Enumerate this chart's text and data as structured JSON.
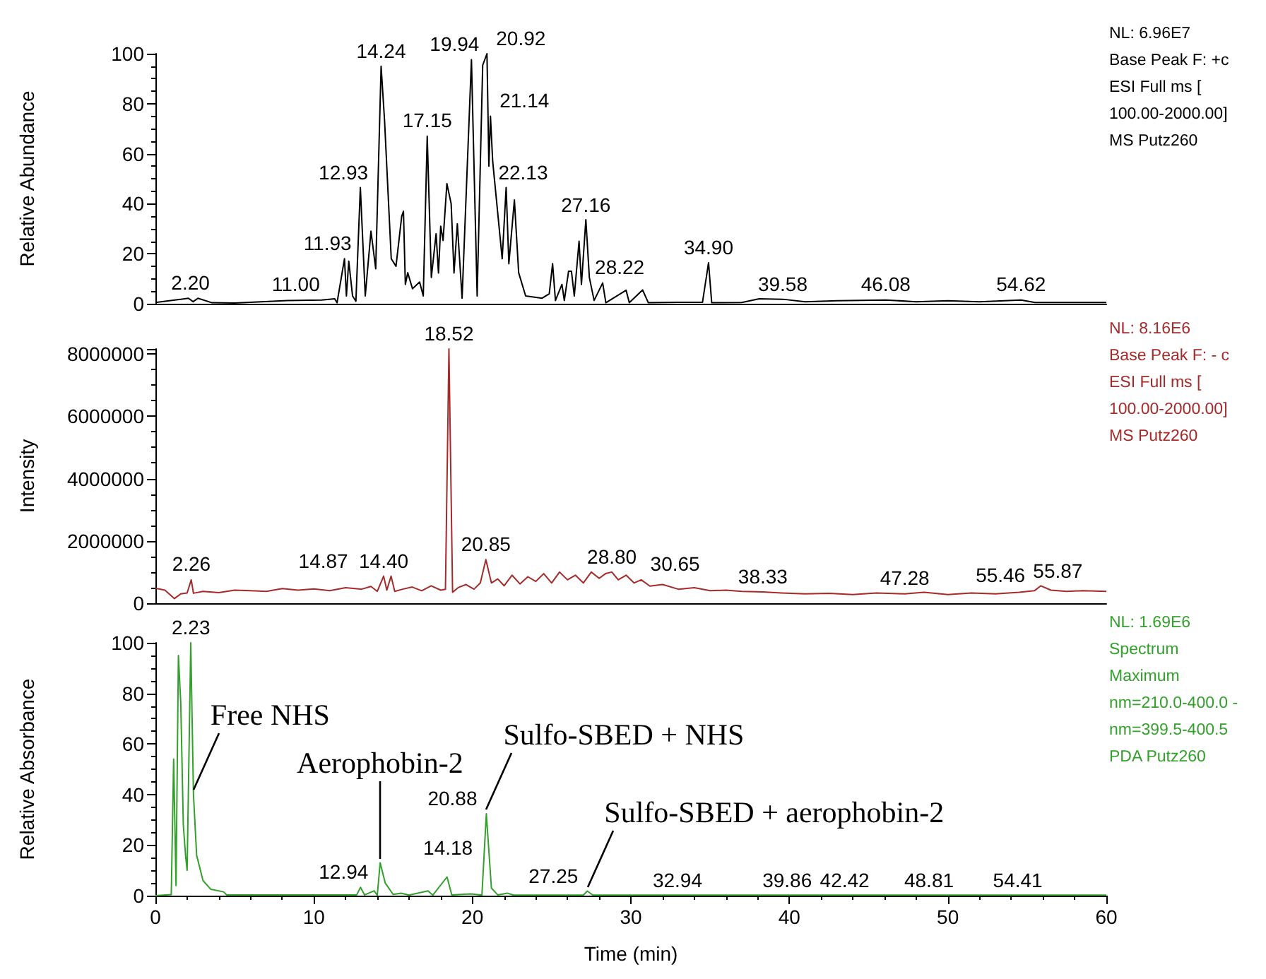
{
  "chart_data": [
    {
      "type": "line",
      "ylabel": "Relative Abundance",
      "xlim": [
        0,
        60
      ],
      "ylim": [
        0,
        100
      ],
      "yticks": [
        0,
        20,
        40,
        60,
        80,
        100
      ],
      "tick_labels": "y",
      "series": [
        {
          "color": "#000000",
          "x": [
            0,
            1.49,
            2.08,
            2.38,
            2.68,
            3.57,
            5,
            8.33,
            10.5,
            11.31,
            11.46,
            11.93,
            12.05,
            12.2,
            12.44,
            12.65,
            12.93,
            13.24,
            13.6,
            13.9,
            14.24,
            14.46,
            14.88,
            15.18,
            15.54,
            15.65,
            15.77,
            15.92,
            16.22,
            16.67,
            16.9,
            17.15,
            17.41,
            17.71,
            17.86,
            18.0,
            18.15,
            18.39,
            18.66,
            18.84,
            19.05,
            19.35,
            19.94,
            20.3,
            20.65,
            20.92,
            21.04,
            21.14,
            21.28,
            21.88,
            22.13,
            22.3,
            22.65,
            22.92,
            23.36,
            24.4,
            24.85,
            25.06,
            25.24,
            25.65,
            25.8,
            26.07,
            26.25,
            26.43,
            26.73,
            26.88,
            27.16,
            27.38,
            27.68,
            28.22,
            28.42,
            29.7,
            29.9,
            30.74,
            31.1,
            33,
            34.52,
            34.9,
            35.1,
            37,
            38.1,
            39.58,
            41,
            43,
            46.08,
            48,
            50,
            52,
            54.62,
            55.5,
            60
          ],
          "values": [
            0.5,
            1.7,
            2.2,
            0.8,
            2.2,
            0.4,
            0.3,
            1.3,
            1.5,
            2,
            0.4,
            18,
            3.1,
            17,
            3.1,
            1,
            46.5,
            3.1,
            29,
            14,
            95,
            73,
            18,
            15,
            35,
            37,
            7.7,
            12.4,
            6,
            8.7,
            3.1,
            67,
            10.5,
            28,
            12.3,
            31,
            25.3,
            48,
            40,
            12.3,
            32,
            2.2,
            97.6,
            3.1,
            95.4,
            100,
            55,
            75,
            57,
            18,
            46.5,
            16,
            41.5,
            12.4,
            3.1,
            2.2,
            4,
            16,
            1.3,
            7.7,
            1.3,
            13,
            13,
            3.1,
            25,
            7.7,
            33.6,
            10.5,
            1.3,
            8.3,
            0.4,
            5.4,
            0.4,
            5.5,
            0.4,
            0.6,
            0.6,
            16.4,
            0.4,
            0.5,
            2,
            1.8,
            0.8,
            1.2,
            1.5,
            0.8,
            1.2,
            0.8,
            1.5,
            0.5,
            0.5
          ]
        }
      ],
      "annotations": [
        {
          "text": "2.20",
          "x": 2.2,
          "y": 2.2
        },
        {
          "text": "11.00",
          "x": 11.0,
          "y": 1.5
        },
        {
          "text": "11.93",
          "x": 11.93,
          "y": 18
        },
        {
          "text": "12.93",
          "x": 12.93,
          "y": 46.5
        },
        {
          "text": "14.24",
          "x": 14.24,
          "y": 95
        },
        {
          "text": "17.15",
          "x": 17.15,
          "y": 67
        },
        {
          "text": "19.94",
          "x": 19.94,
          "y": 97.6
        },
        {
          "text": "20.92",
          "x": 20.92,
          "y": 100
        },
        {
          "text": "21.14",
          "x": 21.14,
          "y": 75
        },
        {
          "text": "22.13",
          "x": 22.13,
          "y": 46.5
        },
        {
          "text": "27.16",
          "x": 27.16,
          "y": 33.6
        },
        {
          "text": "28.22",
          "x": 28.22,
          "y": 8.3
        },
        {
          "text": "34.90",
          "x": 34.9,
          "y": 16.4
        },
        {
          "text": "39.58",
          "x": 39.58,
          "y": 1.8
        },
        {
          "text": "46.08",
          "x": 46.08,
          "y": 1.5
        },
        {
          "text": "54.62",
          "x": 54.62,
          "y": 1.5
        },
        "NL: 6.96E7",
        "Base Peak F: +c",
        "ESI Full ms [",
        "100.00-2000.00]",
        "MS Putz260"
      ]
    },
    {
      "type": "line",
      "ylabel": "Intensity",
      "xlim": [
        0,
        60
      ],
      "ylim": [
        0,
        8160000
      ],
      "yticks": [
        0,
        2000000,
        4000000,
        6000000,
        8000000
      ],
      "tick_labels": "y",
      "series": [
        {
          "color": "#a52a2a",
          "x": [
            0,
            0.6,
            1.2,
            1.6,
            2.0,
            2.26,
            2.4,
            3,
            4,
            5,
            6,
            7,
            8,
            9,
            10,
            11,
            12,
            13,
            13.6,
            14.0,
            14.4,
            14.6,
            14.87,
            15.1,
            15.6,
            16.2,
            16.8,
            17.4,
            18.0,
            18.3,
            18.52,
            18.75,
            19.1,
            19.6,
            20.1,
            20.5,
            20.85,
            21.2,
            21.6,
            22.0,
            22.5,
            23.0,
            23.5,
            24.0,
            24.5,
            25.0,
            25.5,
            26.0,
            26.5,
            27.0,
            27.5,
            28.0,
            28.4,
            28.8,
            29.2,
            29.7,
            30.2,
            30.65,
            31.2,
            32,
            33,
            34,
            35,
            36,
            37,
            38.33,
            39.5,
            41,
            42.5,
            44,
            45.5,
            47.28,
            48.5,
            50,
            51.5,
            53,
            54.5,
            55.46,
            55.87,
            56.5,
            57.5,
            58.5,
            60
          ],
          "values": [
            480000,
            420000,
            150000,
            300000,
            330000,
            750000,
            320000,
            380000,
            340000,
            420000,
            400000,
            380000,
            470000,
            420000,
            460000,
            400000,
            500000,
            450000,
            540000,
            380000,
            870000,
            420000,
            870000,
            380000,
            450000,
            520000,
            400000,
            560000,
            420000,
            450000,
            8160000,
            350000,
            500000,
            600000,
            450000,
            650000,
            1400000,
            650000,
            780000,
            560000,
            900000,
            620000,
            850000,
            700000,
            950000,
            650000,
            1000000,
            750000,
            900000,
            650000,
            1000000,
            800000,
            950000,
            1000000,
            750000,
            900000,
            650000,
            750000,
            550000,
            600000,
            450000,
            500000,
            400000,
            420000,
            380000,
            360000,
            330000,
            300000,
            320000,
            280000,
            330000,
            300000,
            350000,
            280000,
            330000,
            300000,
            350000,
            400000,
            560000,
            420000,
            380000,
            400000,
            380000
          ]
        }
      ],
      "annotations": [
        {
          "text": "2.26",
          "x": 2.26,
          "y": 750000
        },
        {
          "text": "14.40",
          "x": 14.4,
          "y": 870000
        },
        {
          "text": "14.87",
          "x": 14.87,
          "y": 870000
        },
        {
          "text": "18.52",
          "x": 18.52,
          "y": 8160000
        },
        {
          "text": "20.85",
          "x": 20.85,
          "y": 1400000
        },
        {
          "text": "28.80",
          "x": 28.8,
          "y": 1000000
        },
        {
          "text": "30.65",
          "x": 30.65,
          "y": 750000
        },
        {
          "text": "38.33",
          "x": 38.33,
          "y": 360000
        },
        {
          "text": "47.28",
          "x": 47.28,
          "y": 300000
        },
        {
          "text": "55.46",
          "x": 55.46,
          "y": 400000
        },
        {
          "text": "55.87",
          "x": 55.87,
          "y": 560000
        },
        "NL: 8.16E6",
        "Base Peak F: - c",
        "ESI Full ms [",
        "100.00-2000.00]",
        "MS Putz260"
      ]
    },
    {
      "type": "line",
      "ylabel": "Relative Absorbance",
      "xlabel": "Time (min)",
      "xlim": [
        0,
        60
      ],
      "ylim": [
        0,
        100
      ],
      "xticks": [
        0,
        10,
        20,
        30,
        40,
        50,
        60
      ],
      "yticks": [
        0,
        20,
        40,
        60,
        80,
        100
      ],
      "series": [
        {
          "color": "#33a02c",
          "x": [
            0,
            1.0,
            1.15,
            1.3,
            1.45,
            1.6,
            1.76,
            1.9,
            2.0,
            2.23,
            2.4,
            2.6,
            3.0,
            3.5,
            4.3,
            4.5,
            12.7,
            12.94,
            13.2,
            13.8,
            14.0,
            14.18,
            14.5,
            15.0,
            15.5,
            16,
            17.2,
            17.5,
            18.4,
            18.7,
            19.9,
            20.6,
            20.88,
            21.2,
            21.6,
            22.2,
            22.6,
            27.0,
            27.25,
            27.6,
            60
          ],
          "values": [
            0,
            0.4,
            54,
            4,
            95,
            76,
            28,
            16,
            10,
            100,
            40,
            16,
            6,
            2.5,
            1.5,
            0.3,
            0.3,
            3.3,
            0.3,
            1.9,
            0.2,
            13,
            5,
            0.5,
            1,
            0.2,
            1.9,
            0.2,
            7.4,
            0.3,
            0.7,
            0.2,
            32.4,
            3,
            0.3,
            1,
            0.2,
            0.2,
            1.8,
            0.2,
            0.2
          ]
        }
      ],
      "annotations": [
        {
          "text": "2.23",
          "x": 2.23,
          "y": 100
        },
        {
          "text": "12.94",
          "x": 12.94,
          "y": 3.3
        },
        {
          "text": "14.18",
          "x": 14.18,
          "y": 13
        },
        {
          "text": "20.88",
          "x": 20.88,
          "y": 32.4
        },
        {
          "text": "27.25",
          "x": 27.25,
          "y": 1.8
        },
        {
          "text": "32.94",
          "x": 32.94,
          "y": 0.2
        },
        {
          "text": "39.86",
          "x": 39.86,
          "y": 0.2
        },
        {
          "text": "42.42",
          "x": 42.42,
          "y": 0.2
        },
        {
          "text": "48.81",
          "x": 48.81,
          "y": 0.2
        },
        {
          "text": "54.41",
          "x": 54.41,
          "y": 0.2
        },
        {
          "text": "Free NHS",
          "x": 2.4,
          "y": 40
        },
        {
          "text": "Aerophobin-2",
          "x": 14.18,
          "y": 13
        },
        {
          "text": "Sulfo-SBED + NHS",
          "x": 20.88,
          "y": 32.4
        },
        {
          "text": "Sulfo-SBED + aerophobin-2",
          "x": 27.25,
          "y": 1.8
        },
        "NL: 1.69E6",
        "Spectrum",
        "Maximum",
        "nm=210.0-400.0 -",
        "nm=399.5-400.5",
        "PDA Putz260"
      ]
    }
  ]
}
